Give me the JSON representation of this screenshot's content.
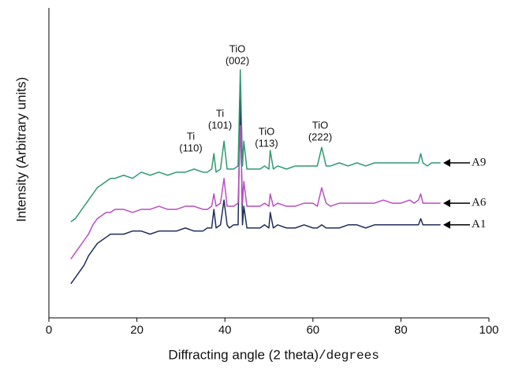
{
  "chart_data": {
    "type": "line",
    "xlabel": "Diffracting angle (2 theta)",
    "xlabel_unit": "/degrees",
    "ylabel": "Intensity (Arbitrary units)",
    "xlim": [
      0,
      100
    ],
    "xticks": [
      0,
      20,
      40,
      60,
      80,
      100
    ],
    "ylim": [
      0,
      100
    ],
    "grid": false,
    "annotations": [
      [
        "Ti",
        "(110)"
      ],
      [
        "Ti",
        "(101)"
      ],
      [
        "TiO",
        "(002)"
      ],
      [
        "TiO",
        "(113)"
      ],
      [
        "TiO",
        "(222)"
      ]
    ],
    "x": [
      5,
      6,
      7,
      8,
      9,
      10,
      11,
      12,
      13,
      14,
      15,
      17,
      19,
      21,
      23,
      25,
      27,
      29,
      31,
      33,
      35,
      36,
      37,
      37.5,
      38,
      39,
      39.8,
      40.5,
      41,
      42,
      43,
      43.5,
      44,
      44.3,
      45,
      46,
      48,
      49,
      50,
      50.3,
      51,
      52,
      54,
      56,
      58,
      60,
      61,
      62,
      63,
      64,
      66,
      68,
      70,
      72,
      74,
      76,
      78,
      80,
      82,
      83,
      84,
      84.5,
      85,
      86,
      87,
      88,
      89
    ],
    "series": [
      {
        "name": "A1",
        "color": "#1f2d5a",
        "values": [
          11,
          13,
          15,
          17,
          20,
          22,
          24,
          25,
          26,
          27,
          27,
          27,
          28,
          28,
          27,
          28,
          28,
          28,
          29,
          28,
          28,
          29,
          29,
          35,
          29,
          30,
          38,
          30,
          29,
          30,
          30,
          72,
          30,
          36,
          29,
          29,
          29,
          30,
          29,
          34,
          29,
          30,
          29,
          29,
          30,
          29,
          29,
          30,
          29,
          29,
          29,
          30,
          30,
          29,
          30,
          30,
          30,
          30,
          30,
          30,
          30,
          32,
          30,
          30,
          30,
          30,
          30
        ]
      },
      {
        "name": "A6",
        "color": "#b94fc0",
        "values": [
          19,
          21,
          23,
          25,
          27,
          30,
          32,
          33,
          34,
          34,
          35,
          35,
          34,
          35,
          35,
          36,
          35,
          35,
          36,
          36,
          35,
          35,
          36,
          40,
          36,
          37,
          45,
          36,
          36,
          36,
          37,
          62,
          37,
          44,
          36,
          36,
          36,
          37,
          36,
          40,
          36,
          37,
          36,
          36,
          37,
          37,
          36,
          42,
          37,
          36,
          37,
          37,
          37,
          37,
          37,
          38,
          37,
          37,
          38,
          37,
          38,
          40,
          37,
          37,
          37,
          37,
          37
        ]
      },
      {
        "name": "A9",
        "color": "#2e9a6e",
        "values": [
          31,
          32,
          34,
          36,
          38,
          40,
          42,
          43,
          44,
          45,
          45,
          46,
          45,
          47,
          46,
          47,
          46,
          47,
          47,
          48,
          47,
          47,
          48,
          53,
          47,
          48,
          57,
          48,
          48,
          48,
          49,
          80,
          49,
          57,
          48,
          48,
          48,
          49,
          48,
          54,
          48,
          49,
          48,
          49,
          49,
          49,
          49,
          55,
          49,
          49,
          50,
          49,
          50,
          49,
          50,
          50,
          50,
          50,
          50,
          50,
          50,
          53,
          50,
          49,
          50,
          50,
          50
        ]
      }
    ]
  }
}
